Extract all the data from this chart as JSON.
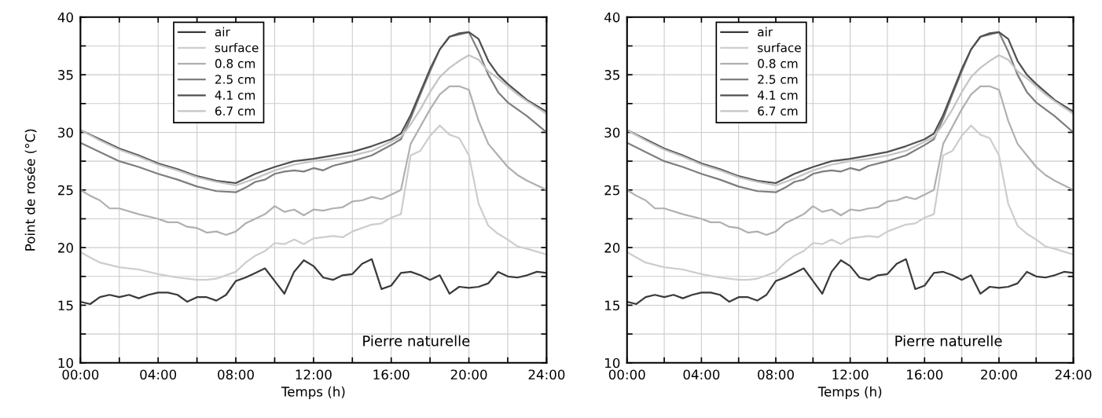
{
  "chart_data": [
    {
      "type": "line",
      "xlabel": "Temps (h)",
      "ylabel": "Point de rosée (°C)",
      "annotations": [
        "Pierre naturelle"
      ],
      "legend": "top",
      "grid": true,
      "line_style": "solid",
      "xlim": [
        0,
        24
      ],
      "ylim": [
        10,
        40
      ],
      "xticks": [
        {
          "value": 0,
          "label": "00:00"
        },
        {
          "value": 2,
          "label": null
        },
        {
          "value": 4,
          "label": "04:00"
        },
        {
          "value": 6,
          "label": null
        },
        {
          "value": 8,
          "label": "08:00"
        },
        {
          "value": 10,
          "label": null
        },
        {
          "value": 12,
          "label": "12:00"
        },
        {
          "value": 14,
          "label": null
        },
        {
          "value": 16,
          "label": "16:00"
        },
        {
          "value": 18,
          "label": null
        },
        {
          "value": 20,
          "label": "20:00"
        },
        {
          "value": 22,
          "label": null
        },
        {
          "value": 24,
          "label": "24:00"
        }
      ],
      "yticks": [
        10,
        {
          "value": 12.5,
          "label": null
        },
        15,
        {
          "value": 17.5,
          "label": null
        },
        20,
        {
          "value": 22.5,
          "label": null
        },
        25,
        {
          "value": 27.5,
          "label": null
        },
        30,
        {
          "value": 32.5,
          "label": null
        },
        35,
        {
          "value": 37.5,
          "label": null
        },
        40
      ],
      "series": [
        {
          "name": "air",
          "color": "#3a3a3a",
          "x": [
            0,
            0.5,
            1,
            1.5,
            2,
            2.5,
            3,
            3.5,
            4,
            4.5,
            5,
            5.5,
            6,
            6.5,
            7,
            7.5,
            8,
            8.5,
            9,
            9.5,
            10,
            10.5,
            11,
            11.5,
            12,
            12.5,
            13,
            13.5,
            14,
            14.5,
            15,
            15.5,
            16,
            16.5,
            17,
            17.5,
            18,
            18.5,
            19,
            19.5,
            20,
            20.5,
            21,
            21.5,
            22,
            22.5,
            23,
            23.5,
            24
          ],
          "values": [
            15.3,
            15.1,
            15.7,
            15.9,
            15.7,
            15.9,
            15.6,
            15.9,
            16.1,
            16.1,
            15.9,
            15.3,
            15.7,
            15.7,
            15.4,
            15.9,
            17.1,
            17.4,
            17.8,
            18.2,
            17.1,
            16.0,
            17.9,
            18.9,
            18.4,
            17.4,
            17.2,
            17.6,
            17.7,
            18.6,
            19.0,
            16.4,
            16.7,
            17.8,
            17.9,
            17.6,
            17.2,
            17.6,
            16.0,
            16.6,
            16.5,
            16.6,
            16.9,
            17.9,
            17.5,
            17.4,
            17.6,
            17.9,
            17.8
          ]
        },
        {
          "name": "surface",
          "color": "#cdcdcd",
          "x": [
            0,
            1,
            2,
            3,
            4,
            5,
            6,
            6.5,
            7,
            8,
            8.5,
            9,
            9.5,
            10,
            10.5,
            11,
            11.5,
            12,
            13,
            13.5,
            14,
            15,
            15.5,
            16,
            16.5,
            17,
            17.5,
            18,
            18.5,
            19,
            19.5,
            20,
            20.5,
            21,
            21.5,
            22,
            22.5,
            23,
            24
          ],
          "values": [
            19.6,
            18.7,
            18.3,
            18.1,
            17.7,
            17.4,
            17.2,
            17.2,
            17.3,
            17.9,
            18.7,
            19.3,
            19.7,
            20.4,
            20.3,
            20.7,
            20.3,
            20.8,
            21.0,
            20.9,
            21.4,
            22.0,
            22.1,
            22.6,
            22.9,
            28.0,
            28.4,
            29.7,
            30.6,
            29.8,
            29.5,
            28.0,
            23.8,
            21.9,
            21.2,
            20.7,
            20.1,
            19.9,
            19.4
          ]
        },
        {
          "name": "0.8 cm",
          "color": "#b0b0b0",
          "x": [
            0,
            0.5,
            1,
            1.5,
            2,
            3,
            4,
            4.5,
            5,
            5.5,
            6,
            6.5,
            7,
            7.5,
            8,
            8.5,
            9,
            9.5,
            10,
            10.5,
            11,
            11.5,
            12,
            12.5,
            13,
            13.5,
            14,
            14.5,
            15,
            15.5,
            16,
            16.5,
            17,
            17.5,
            18,
            18.5,
            19,
            19.5,
            20,
            20.5,
            21,
            21.5,
            22,
            22.5,
            23,
            24
          ],
          "values": [
            25.0,
            24.5,
            24.1,
            23.4,
            23.4,
            22.9,
            22.5,
            22.2,
            22.2,
            21.8,
            21.7,
            21.3,
            21.4,
            21.1,
            21.4,
            22.1,
            22.5,
            22.9,
            23.6,
            23.1,
            23.3,
            22.8,
            23.3,
            23.2,
            23.4,
            23.5,
            24.0,
            24.1,
            24.4,
            24.2,
            24.6,
            25.0,
            29.0,
            30.5,
            32.0,
            33.3,
            34.0,
            34.0,
            33.7,
            31.0,
            29.0,
            28.0,
            27.0,
            26.3,
            25.8,
            25.0
          ]
        },
        {
          "name": "2.5 cm",
          "color": "#7e7e7e",
          "x": [
            0,
            1,
            2,
            3,
            4,
            5,
            6,
            7,
            8,
            8.5,
            9,
            9.5,
            10,
            10.5,
            11,
            11.5,
            12,
            12.5,
            13,
            14,
            15,
            16,
            16.5,
            17,
            17.5,
            18,
            18.5,
            19,
            19.5,
            20,
            20.5,
            21,
            21.5,
            22,
            22.5,
            23,
            24
          ],
          "values": [
            29.1,
            28.3,
            27.5,
            27.0,
            26.4,
            25.9,
            25.3,
            24.9,
            24.8,
            25.2,
            25.7,
            25.9,
            26.4,
            26.6,
            26.7,
            26.6,
            26.9,
            26.7,
            27.1,
            27.5,
            28.0,
            28.9,
            29.4,
            31.2,
            33.3,
            35.3,
            37.2,
            38.3,
            38.5,
            38.7,
            37.0,
            35.0,
            33.5,
            32.6,
            32.0,
            31.4,
            30.0
          ]
        },
        {
          "name": "4.1 cm",
          "color": "#505050",
          "x": [
            0,
            1,
            2,
            3,
            4,
            5,
            6,
            7,
            8,
            9,
            10,
            11,
            12,
            13,
            14,
            15,
            16,
            16.5,
            17,
            17.5,
            18,
            18.5,
            19,
            19.5,
            20,
            20.5,
            21,
            21.5,
            22,
            22.5,
            23,
            24
          ],
          "values": [
            30.2,
            29.4,
            28.6,
            28.0,
            27.3,
            26.8,
            26.2,
            25.8,
            25.6,
            26.4,
            27.0,
            27.5,
            27.7,
            28.0,
            28.3,
            28.8,
            29.4,
            29.9,
            31.5,
            33.5,
            35.5,
            37.2,
            38.3,
            38.6,
            38.7,
            38.1,
            36.2,
            35.0,
            34.2,
            33.5,
            32.8,
            31.8
          ]
        },
        {
          "name": "6.7 cm",
          "color": "#c4c4c4",
          "x": [
            0,
            1,
            2,
            3,
            4,
            5,
            6,
            7,
            8,
            9,
            10,
            11,
            12,
            13,
            14,
            15,
            16,
            16.5,
            17,
            17.5,
            18,
            18.5,
            19,
            19.5,
            20,
            20.5,
            21,
            21.5,
            22,
            22.5,
            23,
            24
          ],
          "values": [
            30.2,
            29.3,
            28.5,
            27.9,
            27.2,
            26.7,
            26.1,
            25.7,
            25.4,
            26.0,
            26.7,
            27.2,
            27.5,
            27.7,
            28.0,
            28.4,
            29.2,
            29.6,
            30.7,
            32.0,
            33.5,
            34.8,
            35.6,
            36.2,
            36.7,
            36.3,
            35.3,
            34.7,
            34.0,
            33.3,
            32.7,
            31.6
          ]
        }
      ]
    },
    {
      "type": "line",
      "xlabel": "Temps (h)",
      "annotations": [
        "Pierre naturelle"
      ],
      "legend": "top",
      "grid": true,
      "line_style": "solid",
      "xlim": [
        0,
        24
      ],
      "ylim": [
        10,
        40
      ],
      "xticks": [
        {
          "value": 0,
          "label": "00:00"
        },
        {
          "value": 2,
          "label": null
        },
        {
          "value": 4,
          "label": "04:00"
        },
        {
          "value": 6,
          "label": null
        },
        {
          "value": 8,
          "label": "08:00"
        },
        {
          "value": 10,
          "label": null
        },
        {
          "value": 12,
          "label": "12:00"
        },
        {
          "value": 14,
          "label": null
        },
        {
          "value": 16,
          "label": "16:00"
        },
        {
          "value": 18,
          "label": null
        },
        {
          "value": 20,
          "label": "20:00"
        },
        {
          "value": 22,
          "label": null
        },
        {
          "value": 24,
          "label": "24:00"
        }
      ],
      "yticks": [
        10,
        {
          "value": 12.5,
          "label": null
        },
        15,
        {
          "value": 17.5,
          "label": null
        },
        20,
        {
          "value": 22.5,
          "label": null
        },
        25,
        {
          "value": 27.5,
          "label": null
        },
        30,
        {
          "value": 32.5,
          "label": null
        },
        35,
        {
          "value": 37.5,
          "label": null
        },
        40
      ],
      "series": [
        {
          "name": "air",
          "color": "#3a3a3a",
          "x": [
            0,
            0.5,
            1,
            1.5,
            2,
            2.5,
            3,
            3.5,
            4,
            4.5,
            5,
            5.5,
            6,
            6.5,
            7,
            7.5,
            8,
            8.5,
            9,
            9.5,
            10,
            10.5,
            11,
            11.5,
            12,
            12.5,
            13,
            13.5,
            14,
            14.5,
            15,
            15.5,
            16,
            16.5,
            17,
            17.5,
            18,
            18.5,
            19,
            19.5,
            20,
            20.5,
            21,
            21.5,
            22,
            22.5,
            23,
            23.5,
            24
          ],
          "values": [
            15.3,
            15.1,
            15.7,
            15.9,
            15.7,
            15.9,
            15.6,
            15.9,
            16.1,
            16.1,
            15.9,
            15.3,
            15.7,
            15.7,
            15.4,
            15.9,
            17.1,
            17.4,
            17.8,
            18.2,
            17.1,
            16.0,
            17.9,
            18.9,
            18.4,
            17.4,
            17.2,
            17.6,
            17.7,
            18.6,
            19.0,
            16.4,
            16.7,
            17.8,
            17.9,
            17.6,
            17.2,
            17.6,
            16.0,
            16.6,
            16.5,
            16.6,
            16.9,
            17.9,
            17.5,
            17.4,
            17.6,
            17.9,
            17.8
          ]
        },
        {
          "name": "surface",
          "color": "#cdcdcd",
          "x": [
            0,
            1,
            2,
            3,
            4,
            5,
            6,
            6.5,
            7,
            8,
            8.5,
            9,
            9.5,
            10,
            10.5,
            11,
            11.5,
            12,
            13,
            13.5,
            14,
            15,
            15.5,
            16,
            16.5,
            17,
            17.5,
            18,
            18.5,
            19,
            19.5,
            20,
            20.5,
            21,
            21.5,
            22,
            22.5,
            23,
            24
          ],
          "values": [
            19.6,
            18.7,
            18.3,
            18.1,
            17.7,
            17.4,
            17.2,
            17.2,
            17.3,
            17.9,
            18.7,
            19.3,
            19.7,
            20.4,
            20.3,
            20.7,
            20.3,
            20.8,
            21.0,
            20.9,
            21.4,
            22.0,
            22.1,
            22.6,
            22.9,
            28.0,
            28.4,
            29.7,
            30.6,
            29.8,
            29.5,
            28.0,
            23.8,
            21.9,
            21.2,
            20.7,
            20.1,
            19.9,
            19.4
          ]
        },
        {
          "name": "0.8 cm",
          "color": "#b0b0b0",
          "x": [
            0,
            0.5,
            1,
            1.5,
            2,
            3,
            4,
            4.5,
            5,
            5.5,
            6,
            6.5,
            7,
            7.5,
            8,
            8.5,
            9,
            9.5,
            10,
            10.5,
            11,
            11.5,
            12,
            12.5,
            13,
            13.5,
            14,
            14.5,
            15,
            15.5,
            16,
            16.5,
            17,
            17.5,
            18,
            18.5,
            19,
            19.5,
            20,
            20.5,
            21,
            21.5,
            22,
            22.5,
            23,
            24
          ],
          "values": [
            25.0,
            24.5,
            24.1,
            23.4,
            23.4,
            22.9,
            22.5,
            22.2,
            22.2,
            21.8,
            21.7,
            21.3,
            21.4,
            21.1,
            21.4,
            22.1,
            22.5,
            22.9,
            23.6,
            23.1,
            23.3,
            22.8,
            23.3,
            23.2,
            23.4,
            23.5,
            24.0,
            24.1,
            24.4,
            24.2,
            24.6,
            25.0,
            29.0,
            30.5,
            32.0,
            33.3,
            34.0,
            34.0,
            33.7,
            31.0,
            29.0,
            28.0,
            27.0,
            26.3,
            25.8,
            25.0
          ]
        },
        {
          "name": "2.5 cm",
          "color": "#7e7e7e",
          "x": [
            0,
            1,
            2,
            3,
            4,
            5,
            6,
            7,
            8,
            8.5,
            9,
            9.5,
            10,
            10.5,
            11,
            11.5,
            12,
            12.5,
            13,
            14,
            15,
            16,
            16.5,
            17,
            17.5,
            18,
            18.5,
            19,
            19.5,
            20,
            20.5,
            21,
            21.5,
            22,
            22.5,
            23,
            24
          ],
          "values": [
            29.1,
            28.3,
            27.5,
            27.0,
            26.4,
            25.9,
            25.3,
            24.9,
            24.8,
            25.2,
            25.7,
            25.9,
            26.4,
            26.6,
            26.7,
            26.6,
            26.9,
            26.7,
            27.1,
            27.5,
            28.0,
            28.9,
            29.4,
            31.2,
            33.3,
            35.3,
            37.2,
            38.3,
            38.5,
            38.7,
            37.0,
            35.0,
            33.5,
            32.6,
            32.0,
            31.4,
            30.0
          ]
        },
        {
          "name": "4.1 cm",
          "color": "#505050",
          "x": [
            0,
            1,
            2,
            3,
            4,
            5,
            6,
            7,
            8,
            9,
            10,
            11,
            12,
            13,
            14,
            15,
            16,
            16.5,
            17,
            17.5,
            18,
            18.5,
            19,
            19.5,
            20,
            20.5,
            21,
            21.5,
            22,
            22.5,
            23,
            24
          ],
          "values": [
            30.2,
            29.4,
            28.6,
            28.0,
            27.3,
            26.8,
            26.2,
            25.8,
            25.6,
            26.4,
            27.0,
            27.5,
            27.7,
            28.0,
            28.3,
            28.8,
            29.4,
            29.9,
            31.5,
            33.5,
            35.5,
            37.2,
            38.3,
            38.6,
            38.7,
            38.1,
            36.2,
            35.0,
            34.2,
            33.5,
            32.8,
            31.8
          ]
        },
        {
          "name": "6.7 cm",
          "color": "#c4c4c4",
          "x": [
            0,
            1,
            2,
            3,
            4,
            5,
            6,
            7,
            8,
            9,
            10,
            11,
            12,
            13,
            14,
            15,
            16,
            16.5,
            17,
            17.5,
            18,
            18.5,
            19,
            19.5,
            20,
            20.5,
            21,
            21.5,
            22,
            22.5,
            23,
            24
          ],
          "values": [
            30.2,
            29.3,
            28.5,
            27.9,
            27.2,
            26.7,
            26.1,
            25.7,
            25.4,
            26.0,
            26.7,
            27.2,
            27.5,
            27.7,
            28.0,
            28.4,
            29.2,
            29.6,
            30.7,
            32.0,
            33.5,
            34.8,
            35.6,
            36.2,
            36.7,
            36.3,
            35.3,
            34.7,
            34.0,
            33.3,
            32.7,
            31.6
          ]
        }
      ]
    }
  ]
}
